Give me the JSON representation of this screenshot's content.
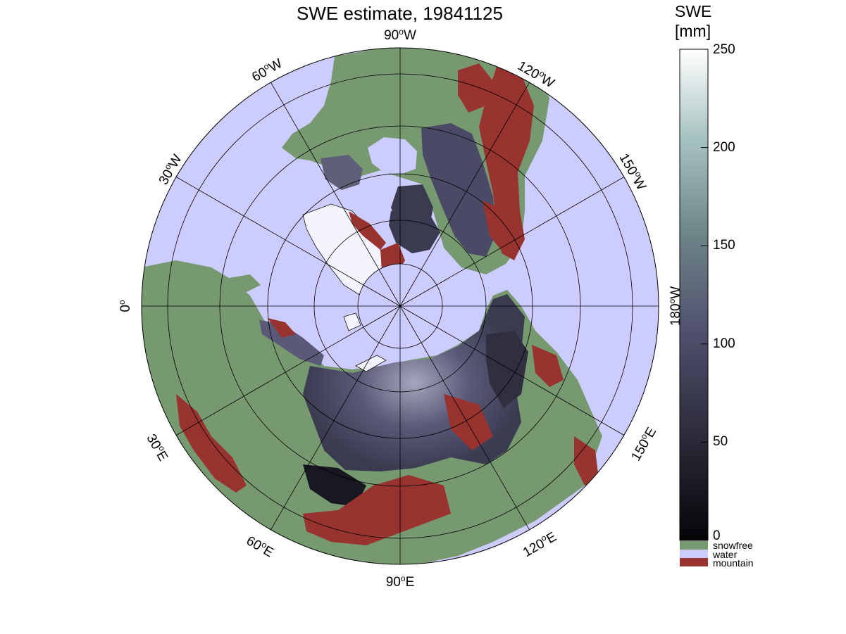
{
  "title": "SWE estimate, 19841125",
  "colorbar": {
    "title_line1": "SWE",
    "title_line2": "[mm]",
    "ticks": [
      "250",
      "200",
      "150",
      "100",
      "50",
      "0"
    ],
    "categories": [
      {
        "label": "snowfree",
        "color": "#77996f"
      },
      {
        "label": "water",
        "color": "#ccccff"
      },
      {
        "label": "mountain",
        "color": "#993330"
      }
    ],
    "range": [
      0,
      250
    ]
  },
  "colors": {
    "ocean": "#ccccff",
    "land": "#77996f",
    "mountain": "#993330",
    "snow_low": "#0a0a10",
    "snow_mid": "#4a4a66",
    "snow_high": "#f4f8f8"
  },
  "map": {
    "projection": "north polar stereographic",
    "longitude_labels": {
      "lon_90w": {
        "deg": "90",
        "suffix": "W"
      },
      "lon_120w": {
        "deg": "120",
        "suffix": "W"
      },
      "lon_150w": {
        "deg": "150",
        "suffix": "W"
      },
      "lon_180w": {
        "deg": "180",
        "suffix": "W"
      },
      "lon_150e": {
        "deg": "150",
        "suffix": "E"
      },
      "lon_120e": {
        "deg": "120",
        "suffix": "E"
      },
      "lon_90e": {
        "deg": "90",
        "suffix": "E"
      },
      "lon_60e": {
        "deg": "60",
        "suffix": "E"
      },
      "lon_30e": {
        "deg": "30",
        "suffix": "E"
      },
      "lon_0": {
        "deg": "0",
        "suffix": ""
      },
      "lon_30w": {
        "deg": "30",
        "suffix": "W"
      },
      "lon_60w": {
        "deg": "60",
        "suffix": "W"
      }
    }
  }
}
